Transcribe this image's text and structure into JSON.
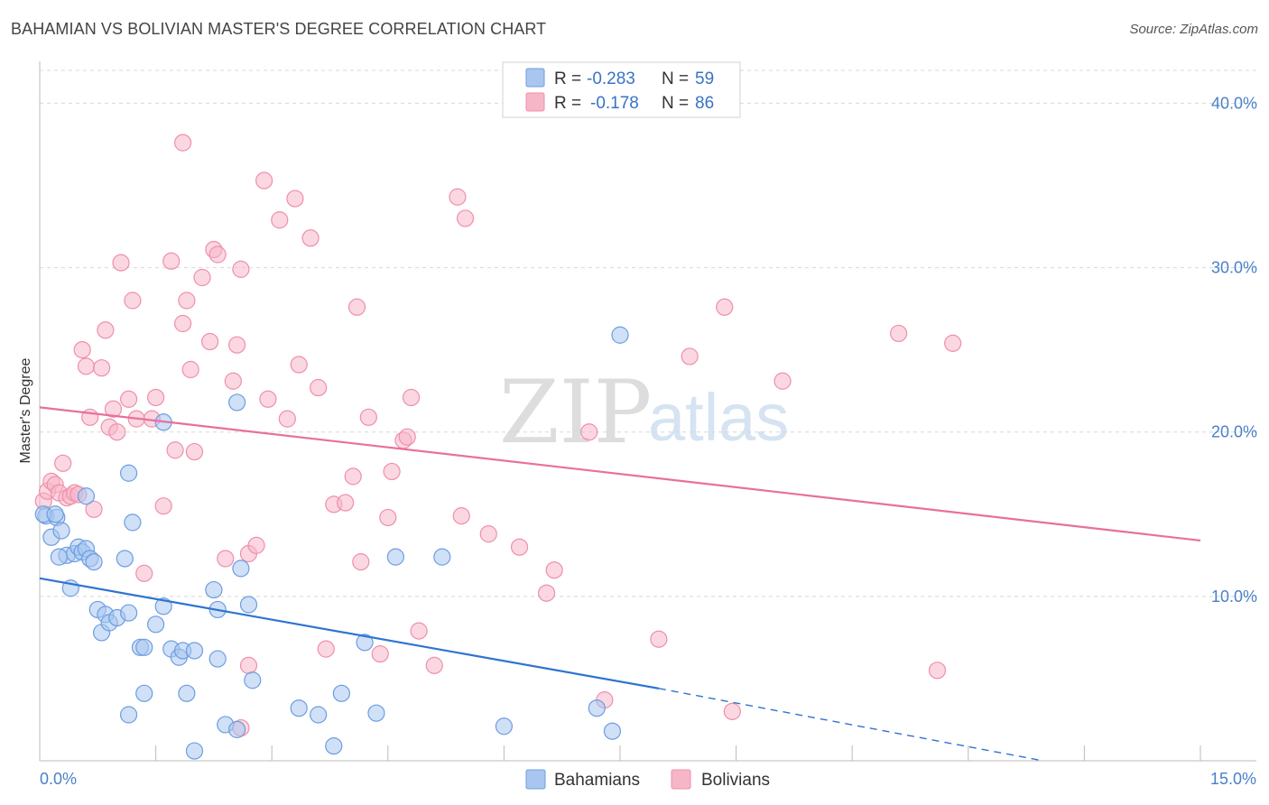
{
  "title": "BAHAMIAN VS BOLIVIAN MASTER'S DEGREE CORRELATION CHART",
  "source": "Source: ZipAtlas.com",
  "watermark": {
    "part1": "ZIP",
    "part2": "atlas"
  },
  "colors": {
    "bahamian_fill": "#a8c6f0",
    "bahamian_stroke": "#6d9de0",
    "bahamian_line": "#2e74d0",
    "bolivian_fill": "#f7b6c8",
    "bolivian_stroke": "#ee8fab",
    "bolivian_line": "#e8709a",
    "grid": "#d8d8d8",
    "axis_text": "#4a80c8"
  },
  "legend": {
    "r_label": "R =",
    "n_label": "N =",
    "rows": [
      {
        "series": "Bahamians",
        "r": "-0.283",
        "n": "59"
      },
      {
        "series": "Bolivians",
        "r": "-0.178",
        "n": "86"
      }
    ]
  },
  "chart_data": {
    "type": "scatter",
    "xlabel": "",
    "ylabel": "Master's Degree",
    "xlim": [
      0,
      15
    ],
    "ylim": [
      0,
      42
    ],
    "x_tick_labels": [
      "0.0%",
      "15.0%"
    ],
    "y_ticks": [
      10,
      20,
      30,
      40
    ],
    "y_tick_labels": [
      "10.0%",
      "20.0%",
      "30.0%",
      "40.0%"
    ],
    "grid": true,
    "legend_position": "top-center",
    "series": [
      {
        "name": "Bahamians",
        "r": -0.283,
        "n": 59,
        "trend": {
          "x0": 0,
          "y0": 11.1,
          "x1": 8.0,
          "y1": 4.4,
          "dashed_to_x": 15,
          "dashed_to_y": -1.8
        },
        "points": [
          [
            0.08,
            14.9
          ],
          [
            0.15,
            13.6
          ],
          [
            0.22,
            14.8
          ],
          [
            0.28,
            14.0
          ],
          [
            0.35,
            12.5
          ],
          [
            0.4,
            10.5
          ],
          [
            0.45,
            12.6
          ],
          [
            0.5,
            13.0
          ],
          [
            0.55,
            12.7
          ],
          [
            0.6,
            12.9
          ],
          [
            0.65,
            12.3
          ],
          [
            0.7,
            12.1
          ],
          [
            0.75,
            9.2
          ],
          [
            0.8,
            7.8
          ],
          [
            0.85,
            8.9
          ],
          [
            0.9,
            8.4
          ],
          [
            1.0,
            8.7
          ],
          [
            1.1,
            12.3
          ],
          [
            1.15,
            9.0
          ],
          [
            1.2,
            14.5
          ],
          [
            0.6,
            16.1
          ],
          [
            1.15,
            17.5
          ],
          [
            1.3,
            6.9
          ],
          [
            1.35,
            6.9
          ],
          [
            1.5,
            8.3
          ],
          [
            1.6,
            9.4
          ],
          [
            1.7,
            6.8
          ],
          [
            1.8,
            6.3
          ],
          [
            1.85,
            6.7
          ],
          [
            2.0,
            6.7
          ],
          [
            2.25,
            10.4
          ],
          [
            2.3,
            9.2
          ],
          [
            2.6,
            11.7
          ],
          [
            2.7,
            9.5
          ],
          [
            2.55,
            21.8
          ],
          [
            1.6,
            20.6
          ],
          [
            1.35,
            4.1
          ],
          [
            1.15,
            2.8
          ],
          [
            1.9,
            4.1
          ],
          [
            2.0,
            0.6
          ],
          [
            2.4,
            2.2
          ],
          [
            2.55,
            1.9
          ],
          [
            2.75,
            4.9
          ],
          [
            3.35,
            3.2
          ],
          [
            3.6,
            2.8
          ],
          [
            3.8,
            0.9
          ],
          [
            3.9,
            4.1
          ],
          [
            4.2,
            7.2
          ],
          [
            4.35,
            2.9
          ],
          [
            4.6,
            12.4
          ],
          [
            5.2,
            12.4
          ],
          [
            6.0,
            2.1
          ],
          [
            7.2,
            3.2
          ],
          [
            7.4,
            1.8
          ],
          [
            7.5,
            25.9
          ],
          [
            0.05,
            15.0
          ],
          [
            0.2,
            15.0
          ],
          [
            0.25,
            12.4
          ],
          [
            2.3,
            6.2
          ]
        ]
      },
      {
        "name": "Bolivians",
        "r": -0.178,
        "n": 86,
        "trend": {
          "x0": 0,
          "y0": 21.5,
          "x1": 15,
          "y1": 13.4
        },
        "points": [
          [
            0.05,
            15.8
          ],
          [
            0.1,
            16.4
          ],
          [
            0.15,
            17.0
          ],
          [
            0.2,
            16.8
          ],
          [
            0.25,
            16.3
          ],
          [
            0.3,
            18.1
          ],
          [
            0.35,
            16.0
          ],
          [
            0.4,
            16.1
          ],
          [
            0.45,
            16.3
          ],
          [
            0.5,
            16.2
          ],
          [
            0.55,
            25.0
          ],
          [
            0.6,
            24.0
          ],
          [
            0.65,
            20.9
          ],
          [
            0.7,
            15.3
          ],
          [
            0.8,
            23.9
          ],
          [
            0.85,
            26.2
          ],
          [
            0.9,
            20.3
          ],
          [
            0.95,
            21.4
          ],
          [
            1.0,
            20.0
          ],
          [
            1.05,
            30.3
          ],
          [
            1.15,
            22.0
          ],
          [
            1.2,
            28.0
          ],
          [
            1.25,
            20.8
          ],
          [
            1.35,
            11.4
          ],
          [
            1.45,
            20.8
          ],
          [
            1.5,
            22.1
          ],
          [
            1.6,
            15.5
          ],
          [
            1.7,
            30.4
          ],
          [
            1.75,
            18.9
          ],
          [
            1.85,
            26.6
          ],
          [
            1.9,
            28.0
          ],
          [
            1.95,
            23.8
          ],
          [
            2.0,
            18.8
          ],
          [
            2.1,
            29.4
          ],
          [
            2.2,
            25.5
          ],
          [
            2.25,
            31.1
          ],
          [
            2.3,
            30.8
          ],
          [
            2.4,
            12.3
          ],
          [
            2.5,
            23.1
          ],
          [
            2.55,
            25.3
          ],
          [
            2.6,
            29.9
          ],
          [
            2.7,
            12.6
          ],
          [
            2.8,
            13.1
          ],
          [
            2.9,
            35.3
          ],
          [
            2.95,
            22.0
          ],
          [
            3.1,
            32.9
          ],
          [
            3.2,
            20.8
          ],
          [
            3.3,
            34.2
          ],
          [
            3.35,
            24.1
          ],
          [
            3.5,
            31.8
          ],
          [
            3.6,
            22.7
          ],
          [
            3.7,
            6.8
          ],
          [
            3.8,
            15.6
          ],
          [
            3.95,
            15.7
          ],
          [
            4.05,
            17.3
          ],
          [
            4.1,
            27.6
          ],
          [
            4.15,
            12.1
          ],
          [
            4.25,
            20.9
          ],
          [
            4.4,
            6.5
          ],
          [
            4.5,
            14.8
          ],
          [
            4.55,
            17.6
          ],
          [
            4.7,
            19.5
          ],
          [
            4.75,
            19.7
          ],
          [
            4.8,
            22.1
          ],
          [
            4.9,
            7.9
          ],
          [
            5.1,
            5.8
          ],
          [
            5.4,
            34.3
          ],
          [
            5.45,
            14.9
          ],
          [
            5.5,
            33.0
          ],
          [
            5.8,
            13.8
          ],
          [
            6.2,
            13.0
          ],
          [
            6.55,
            10.2
          ],
          [
            6.65,
            11.6
          ],
          [
            7.1,
            20.0
          ],
          [
            7.3,
            3.7
          ],
          [
            8.0,
            7.4
          ],
          [
            8.4,
            24.6
          ],
          [
            8.85,
            27.6
          ],
          [
            8.95,
            3.0
          ],
          [
            9.6,
            23.1
          ],
          [
            11.1,
            26.0
          ],
          [
            11.6,
            5.5
          ],
          [
            11.8,
            25.4
          ],
          [
            1.85,
            37.6
          ],
          [
            2.7,
            5.8
          ],
          [
            2.6,
            2.0
          ]
        ]
      }
    ]
  }
}
